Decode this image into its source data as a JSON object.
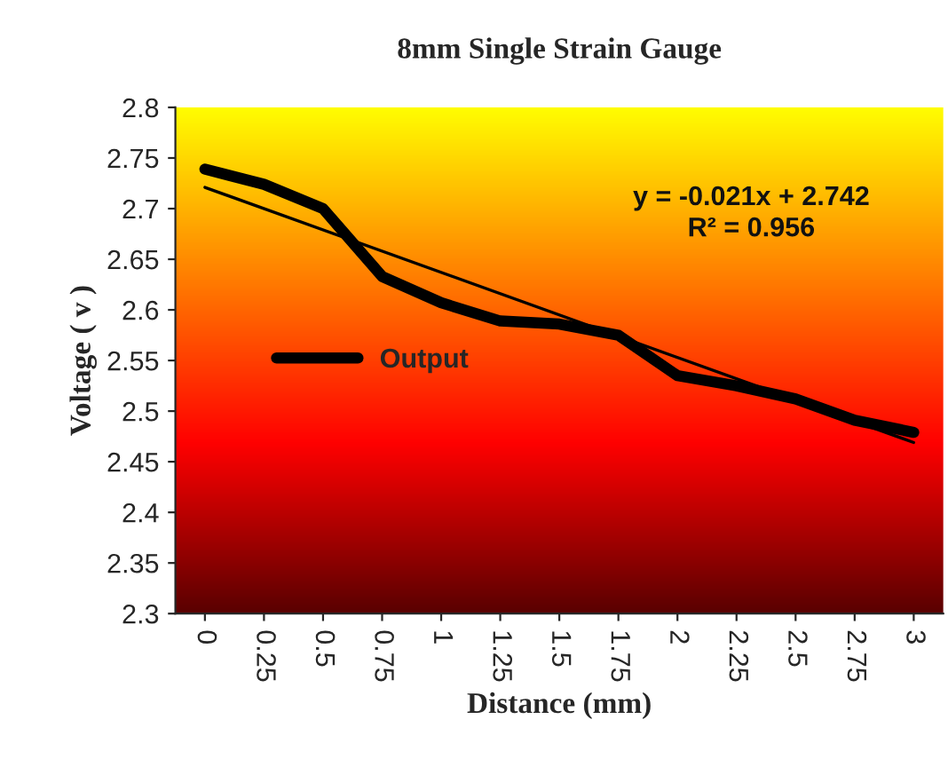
{
  "chart_data": {
    "type": "line",
    "title": "8mm Single Strain Gauge",
    "xlabel": "Distance (mm)",
    "ylabel": "Voltage ( v )",
    "categories": [
      "0",
      "0.25",
      "0.5",
      "0.75",
      "1",
      "1.25",
      "1.5",
      "1.75",
      "2",
      "2.25",
      "2.5",
      "2.75",
      "3"
    ],
    "series": [
      {
        "name": "Output",
        "color": "#000000",
        "values": [
          2.739,
          2.724,
          2.7,
          2.633,
          2.607,
          2.589,
          2.586,
          2.575,
          2.535,
          2.525,
          2.512,
          2.491,
          2.479
        ]
      },
      {
        "type": "line",
        "color": "#000000",
        "x": [
          "0",
          "3"
        ],
        "values": [
          2.721,
          2.469
        ]
      }
    ],
    "ylim": [
      2.3,
      2.8
    ],
    "yticks": [
      2.3,
      2.35,
      2.4,
      2.45,
      2.5,
      2.55,
      2.6,
      2.65,
      2.7,
      2.75,
      2.8
    ],
    "annotations": [
      "y = -0.021x + 2.742\nR² = 0.956"
    ],
    "legend": "center left",
    "grid": false,
    "marker": "none",
    "line_style": "solid"
  }
}
